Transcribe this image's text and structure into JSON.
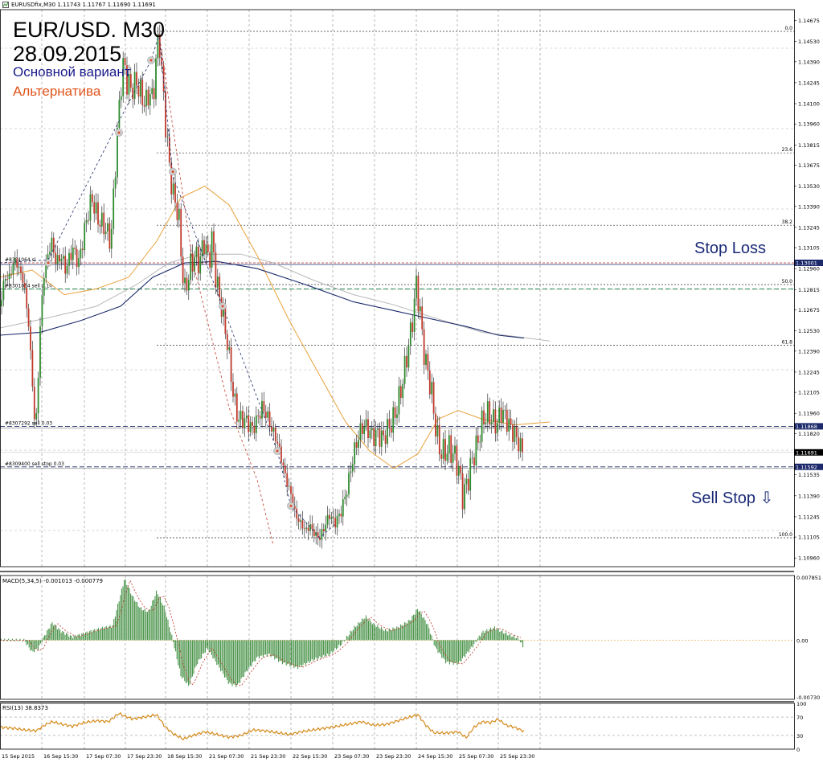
{
  "header": {
    "symbol_line": "EURUSDfix,M30  1.11743 1.11767 1.11690 1.11691"
  },
  "title": "EUR/USD. M30",
  "date": "28.09.2015",
  "legend": {
    "main": "Основной вариант",
    "alt": "Альтернатива"
  },
  "annotations": {
    "stop_loss": "Stop Loss",
    "sell_stop": "Sell Stop ⇩"
  },
  "colors": {
    "bull": "#2e8b2e",
    "bear": "#c0392b",
    "ma_orange": "#e8a23c",
    "ma_navy": "#1c2a6b",
    "ma_gray": "#b8b8b8",
    "macd_hist": "#3b8b3b",
    "macd_signal": "#c0392b",
    "rsi": "#d48a1a",
    "stop_loss": "#c0392b",
    "order": "#1c2a6b",
    "entry": "#0a7a40"
  },
  "icons": {
    "header": "chart-window-icon"
  },
  "chart_data": [
    {
      "type": "candlestick",
      "title": "EUR/USD. M30",
      "ylim": [
        1.109,
        1.1475
      ],
      "y_ticks": [
        "1.14675",
        "1.14530",
        "1.14390",
        "1.14245",
        "1.14100",
        "1.13960",
        "1.13815",
        "1.13675",
        "1.13530",
        "1.13390",
        "1.13245",
        "1.13105",
        "1.12960",
        "1.12815",
        "1.12675",
        "1.12530",
        "1.12390",
        "1.12245",
        "1.12105",
        "1.11960",
        "1.11820",
        "1.11535",
        "1.11390",
        "1.11245",
        "1.11105",
        "1.10960"
      ],
      "x_labels": [
        "15 Sep 2015",
        "16 Sep 15:30",
        "17 Sep 07:30",
        "17 Sep 23:30",
        "18 Sep 15:30",
        "21 Sep 07:30",
        "21 Sep 23:30",
        "22 Sep 15:30",
        "23 Sep 07:30",
        "23 Sep 23:30",
        "24 Sep 15:30",
        "25 Sep 07:30",
        "25 Sep 23:30"
      ],
      "price_path": [
        {
          "x": 0,
          "y": 1.127
        },
        {
          "x": 6,
          "y": 1.129
        },
        {
          "x": 12,
          "y": 1.129
        },
        {
          "x": 18,
          "y": 1.1302
        },
        {
          "x": 24,
          "y": 1.1296
        },
        {
          "x": 30,
          "y": 1.1285
        },
        {
          "x": 36,
          "y": 1.1255
        },
        {
          "x": 40,
          "y": 1.122
        },
        {
          "x": 44,
          "y": 1.118
        },
        {
          "x": 47,
          "y": 1.1215
        },
        {
          "x": 50,
          "y": 1.1255
        },
        {
          "x": 54,
          "y": 1.129
        },
        {
          "x": 58,
          "y": 1.1302
        },
        {
          "x": 64,
          "y": 1.1315
        },
        {
          "x": 70,
          "y": 1.13
        },
        {
          "x": 76,
          "y": 1.1305
        },
        {
          "x": 82,
          "y": 1.1295
        },
        {
          "x": 90,
          "y": 1.131
        },
        {
          "x": 98,
          "y": 1.13
        },
        {
          "x": 106,
          "y": 1.1325
        },
        {
          "x": 114,
          "y": 1.1345
        },
        {
          "x": 122,
          "y": 1.133
        },
        {
          "x": 130,
          "y": 1.1325
        },
        {
          "x": 138,
          "y": 1.1315
        },
        {
          "x": 146,
          "y": 1.139
        },
        {
          "x": 150,
          "y": 1.142
        },
        {
          "x": 154,
          "y": 1.144
        },
        {
          "x": 158,
          "y": 1.1425
        },
        {
          "x": 164,
          "y": 1.142
        },
        {
          "x": 170,
          "y": 1.1425
        },
        {
          "x": 176,
          "y": 1.1415
        },
        {
          "x": 182,
          "y": 1.141
        },
        {
          "x": 186,
          "y": 1.142
        },
        {
          "x": 190,
          "y": 1.141
        },
        {
          "x": 194,
          "y": 1.144
        },
        {
          "x": 198,
          "y": 1.1458
        },
        {
          "x": 204,
          "y": 1.141
        },
        {
          "x": 210,
          "y": 1.137
        },
        {
          "x": 216,
          "y": 1.1345
        },
        {
          "x": 222,
          "y": 1.1335
        },
        {
          "x": 226,
          "y": 1.13
        },
        {
          "x": 230,
          "y": 1.128
        },
        {
          "x": 236,
          "y": 1.1295
        },
        {
          "x": 242,
          "y": 1.1305
        },
        {
          "x": 248,
          "y": 1.13
        },
        {
          "x": 254,
          "y": 1.1315
        },
        {
          "x": 260,
          "y": 1.13
        },
        {
          "x": 264,
          "y": 1.1318
        },
        {
          "x": 268,
          "y": 1.1292
        },
        {
          "x": 272,
          "y": 1.128
        },
        {
          "x": 278,
          "y": 1.1262
        },
        {
          "x": 284,
          "y": 1.124
        },
        {
          "x": 290,
          "y": 1.121
        },
        {
          "x": 296,
          "y": 1.1192
        },
        {
          "x": 302,
          "y": 1.1192
        },
        {
          "x": 308,
          "y": 1.119
        },
        {
          "x": 314,
          "y": 1.1185
        },
        {
          "x": 320,
          "y": 1.1192
        },
        {
          "x": 326,
          "y": 1.12
        },
        {
          "x": 332,
          "y": 1.1195
        },
        {
          "x": 338,
          "y": 1.1185
        },
        {
          "x": 344,
          "y": 1.1178
        },
        {
          "x": 350,
          "y": 1.1165
        },
        {
          "x": 356,
          "y": 1.115
        },
        {
          "x": 362,
          "y": 1.114
        },
        {
          "x": 368,
          "y": 1.1125
        },
        {
          "x": 374,
          "y": 1.112
        },
        {
          "x": 380,
          "y": 1.1115
        },
        {
          "x": 386,
          "y": 1.1118
        },
        {
          "x": 392,
          "y": 1.1112
        },
        {
          "x": 398,
          "y": 1.111
        },
        {
          "x": 404,
          "y": 1.1118
        },
        {
          "x": 410,
          "y": 1.1126
        },
        {
          "x": 416,
          "y": 1.112
        },
        {
          "x": 422,
          "y": 1.1125
        },
        {
          "x": 428,
          "y": 1.1135
        },
        {
          "x": 434,
          "y": 1.115
        },
        {
          "x": 440,
          "y": 1.1168
        },
        {
          "x": 446,
          "y": 1.118
        },
        {
          "x": 452,
          "y": 1.1188
        },
        {
          "x": 458,
          "y": 1.1185
        },
        {
          "x": 464,
          "y": 1.118
        },
        {
          "x": 470,
          "y": 1.1182
        },
        {
          "x": 476,
          "y": 1.1178
        },
        {
          "x": 482,
          "y": 1.1185
        },
        {
          "x": 488,
          "y": 1.119
        },
        {
          "x": 494,
          "y": 1.12
        },
        {
          "x": 500,
          "y": 1.1215
        },
        {
          "x": 506,
          "y": 1.1235
        },
        {
          "x": 512,
          "y": 1.1255
        },
        {
          "x": 518,
          "y": 1.1285
        },
        {
          "x": 522,
          "y": 1.127
        },
        {
          "x": 526,
          "y": 1.1245
        },
        {
          "x": 530,
          "y": 1.123
        },
        {
          "x": 536,
          "y": 1.1215
        },
        {
          "x": 540,
          "y": 1.1195
        },
        {
          "x": 546,
          "y": 1.1172
        },
        {
          "x": 552,
          "y": 1.1168
        },
        {
          "x": 558,
          "y": 1.1172
        },
        {
          "x": 564,
          "y": 1.1168
        },
        {
          "x": 570,
          "y": 1.116
        },
        {
          "x": 576,
          "y": 1.1138
        },
        {
          "x": 582,
          "y": 1.115
        },
        {
          "x": 588,
          "y": 1.1165
        },
        {
          "x": 594,
          "y": 1.1175
        },
        {
          "x": 600,
          "y": 1.119
        },
        {
          "x": 606,
          "y": 1.1196
        },
        {
          "x": 612,
          "y": 1.1192
        },
        {
          "x": 618,
          "y": 1.1188
        },
        {
          "x": 624,
          "y": 1.1198
        },
        {
          "x": 630,
          "y": 1.1192
        },
        {
          "x": 636,
          "y": 1.1185
        },
        {
          "x": 642,
          "y": 1.118
        },
        {
          "x": 648,
          "y": 1.1172
        },
        {
          "x": 652,
          "y": 1.1169
        }
      ],
      "ma_orange": [
        [
          0,
          1.129
        ],
        [
          40,
          1.1295
        ],
        [
          80,
          1.1278
        ],
        [
          120,
          1.1282
        ],
        [
          160,
          1.129
        ],
        [
          195,
          1.1315
        ],
        [
          225,
          1.1345
        ],
        [
          255,
          1.1353
        ],
        [
          285,
          1.134
        ],
        [
          320,
          1.1305
        ],
        [
          360,
          1.126
        ],
        [
          400,
          1.122
        ],
        [
          430,
          1.119
        ],
        [
          460,
          1.117
        ],
        [
          490,
          1.1158
        ],
        [
          520,
          1.1168
        ],
        [
          545,
          1.1192
        ],
        [
          570,
          1.1198
        ],
        [
          600,
          1.1192
        ],
        [
          640,
          1.1188
        ],
        [
          684,
          1.119
        ]
      ],
      "ma_navy": [
        [
          0,
          1.125
        ],
        [
          50,
          1.1252
        ],
        [
          100,
          1.126
        ],
        [
          150,
          1.127
        ],
        [
          190,
          1.129
        ],
        [
          230,
          1.13
        ],
        [
          270,
          1.1301
        ],
        [
          320,
          1.1296
        ],
        [
          380,
          1.1285
        ],
        [
          440,
          1.1273
        ],
        [
          490,
          1.1267
        ],
        [
          530,
          1.1262
        ],
        [
          580,
          1.1256
        ],
        [
          620,
          1.125
        ],
        [
          652,
          1.1248
        ]
      ],
      "ma_gray": [
        [
          0,
          1.1255
        ],
        [
          60,
          1.1262
        ],
        [
          120,
          1.127
        ],
        [
          170,
          1.1285
        ],
        [
          210,
          1.13
        ],
        [
          250,
          1.1306
        ],
        [
          300,
          1.1306
        ],
        [
          340,
          1.13
        ],
        [
          390,
          1.1288
        ],
        [
          440,
          1.1278
        ],
        [
          490,
          1.1271
        ],
        [
          540,
          1.1262
        ],
        [
          600,
          1.1252
        ],
        [
          684,
          1.1246
        ]
      ],
      "wave_main": [
        [
          0,
          1.13
        ],
        [
          60,
          1.1302
        ],
        [
          150,
          1.14
        ],
        [
          188,
          1.144
        ],
        [
          198,
          1.1458
        ],
        [
          215,
          1.136
        ],
        [
          277,
          1.127
        ],
        [
          345,
          1.117
        ],
        [
          362,
          1.1132
        ],
        [
          398,
          1.111
        ],
        [
          418,
          1.112
        ]
      ],
      "wave_alt": [
        [
          198,
          1.1458
        ],
        [
          240,
          1.13
        ],
        [
          285,
          1.12
        ],
        [
          320,
          1.115
        ],
        [
          340,
          1.1105
        ]
      ],
      "wave_markers": [
        [
          60,
          1.13
        ],
        [
          148,
          1.139
        ],
        [
          188,
          1.144
        ],
        [
          215,
          1.1363
        ],
        [
          277,
          1.127
        ],
        [
          345,
          1.117
        ],
        [
          362,
          1.1132
        ]
      ],
      "fib_levels": [
        {
          "label": "0.0",
          "value": 1.146
        },
        {
          "label": "23.6",
          "value": 1.1376
        },
        {
          "label": "38.2",
          "value": 1.1326
        },
        {
          "label": "50.0",
          "value": 1.1285
        },
        {
          "label": "61.8",
          "value": 1.1243
        },
        {
          "label": "100.0",
          "value": 1.111
        }
      ],
      "order_lines": [
        {
          "label": "#8301064 sl",
          "value": 1.13,
          "price_tag": "1.13001",
          "style": "stop"
        },
        {
          "label": "#8301064 sell 0.10",
          "value": 1.1282,
          "style": "entry"
        },
        {
          "label": "#8307292 sell 0.03",
          "value": 1.1187,
          "price_tag": "1.11868",
          "style": "order"
        },
        {
          "label": "#8309400 sell stop 0.03",
          "value": 1.1159,
          "price_tag": "1.11592",
          "style": "order"
        }
      ],
      "last_price": {
        "label": "1.11691",
        "value": 1.1169
      }
    },
    {
      "type": "bar",
      "title": "MACD(5,34,5) -0.001013 -0.000779",
      "ylim": [
        -0.0075,
        0.0082
      ],
      "y_ticks": [
        "0.007851",
        "0.00",
        "-0.00730"
      ],
      "values": [
        [
          0,
          0.0
        ],
        [
          30,
          0.0
        ],
        [
          40,
          -0.0015
        ],
        [
          48,
          -0.001
        ],
        [
          55,
          0.0005
        ],
        [
          65,
          0.0022
        ],
        [
          75,
          0.0012
        ],
        [
          90,
          0.0004
        ],
        [
          100,
          0.0007
        ],
        [
          115,
          0.0012
        ],
        [
          130,
          0.0016
        ],
        [
          140,
          0.0018
        ],
        [
          148,
          0.005
        ],
        [
          155,
          0.0078
        ],
        [
          165,
          0.0055
        ],
        [
          175,
          0.004
        ],
        [
          185,
          0.0036
        ],
        [
          195,
          0.0062
        ],
        [
          205,
          0.004
        ],
        [
          215,
          0.0
        ],
        [
          225,
          -0.0045
        ],
        [
          235,
          -0.0058
        ],
        [
          245,
          -0.003
        ],
        [
          258,
          -0.001
        ],
        [
          270,
          -0.003
        ],
        [
          285,
          -0.0055
        ],
        [
          295,
          -0.0058
        ],
        [
          305,
          -0.0042
        ],
        [
          320,
          -0.0022
        ],
        [
          335,
          -0.0018
        ],
        [
          350,
          -0.0028
        ],
        [
          370,
          -0.0035
        ],
        [
          390,
          -0.0025
        ],
        [
          410,
          -0.0018
        ],
        [
          425,
          -0.0005
        ],
        [
          440,
          0.0015
        ],
        [
          455,
          0.003
        ],
        [
          465,
          0.002
        ],
        [
          480,
          0.0012
        ],
        [
          495,
          0.0016
        ],
        [
          510,
          0.0025
        ],
        [
          520,
          0.004
        ],
        [
          532,
          0.002
        ],
        [
          542,
          -0.001
        ],
        [
          555,
          -0.0028
        ],
        [
          570,
          -0.003
        ],
        [
          580,
          -0.0018
        ],
        [
          590,
          -0.0005
        ],
        [
          600,
          0.001
        ],
        [
          615,
          0.0016
        ],
        [
          630,
          0.0008
        ],
        [
          645,
          0.0002
        ],
        [
          652,
          -0.001
        ]
      ]
    },
    {
      "type": "line",
      "title": "RSI(13) 38.8373",
      "ylim": [
        0,
        100
      ],
      "y_ticks": [
        "100",
        "70",
        "30",
        "0"
      ],
      "values": [
        [
          0,
          48
        ],
        [
          15,
          46
        ],
        [
          30,
          42
        ],
        [
          45,
          40
        ],
        [
          55,
          52
        ],
        [
          65,
          60
        ],
        [
          75,
          55
        ],
        [
          90,
          50
        ],
        [
          105,
          58
        ],
        [
          120,
          62
        ],
        [
          135,
          60
        ],
        [
          148,
          78
        ],
        [
          155,
          72
        ],
        [
          165,
          66
        ],
        [
          180,
          70
        ],
        [
          195,
          75
        ],
        [
          205,
          50
        ],
        [
          215,
          34
        ],
        [
          228,
          22
        ],
        [
          240,
          30
        ],
        [
          255,
          38
        ],
        [
          270,
          32
        ],
        [
          285,
          26
        ],
        [
          300,
          30
        ],
        [
          315,
          42
        ],
        [
          330,
          40
        ],
        [
          345,
          36
        ],
        [
          360,
          32
        ],
        [
          375,
          38
        ],
        [
          390,
          42
        ],
        [
          405,
          46
        ],
        [
          420,
          50
        ],
        [
          435,
          55
        ],
        [
          450,
          60
        ],
        [
          465,
          52
        ],
        [
          480,
          54
        ],
        [
          495,
          62
        ],
        [
          510,
          70
        ],
        [
          520,
          75
        ],
        [
          530,
          52
        ],
        [
          540,
          36
        ],
        [
          555,
          35
        ],
        [
          570,
          38
        ],
        [
          580,
          25
        ],
        [
          590,
          48
        ],
        [
          600,
          60
        ],
        [
          610,
          58
        ],
        [
          620,
          65
        ],
        [
          630,
          52
        ],
        [
          640,
          48
        ],
        [
          652,
          38.8
        ]
      ]
    }
  ]
}
